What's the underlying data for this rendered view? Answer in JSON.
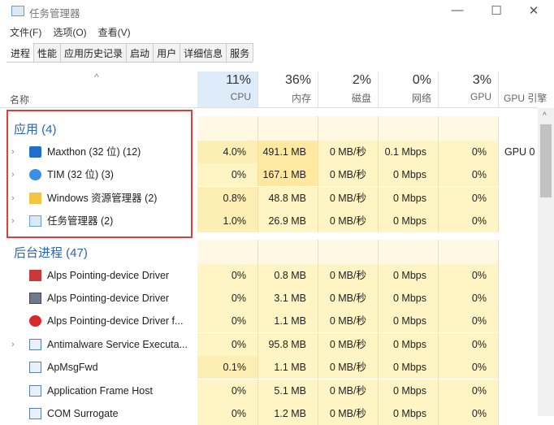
{
  "window": {
    "title": "任务管理器",
    "minimize": "—",
    "maximize": "☐",
    "close": "✕"
  },
  "menu": [
    "文件(F)",
    "选项(O)",
    "查看(V)"
  ],
  "tabs": [
    "进程",
    "性能",
    "应用历史记录",
    "启动",
    "用户",
    "详细信息",
    "服务"
  ],
  "columns": {
    "name": "名称",
    "sort_arrow": "^",
    "cpu": {
      "pct": "11%",
      "label": "CPU"
    },
    "mem": {
      "pct": "36%",
      "label": "内存"
    },
    "disk": {
      "pct": "2%",
      "label": "磁盘"
    },
    "net": {
      "pct": "0%",
      "label": "网络"
    },
    "gpu": {
      "pct": "3%",
      "label": "GPU"
    },
    "gpu_engine": {
      "label": "GPU 引擎"
    }
  },
  "groups": [
    {
      "label": "应用 (4)",
      "rows": [
        {
          "name": "Maxthon (32 位) (12)",
          "icon": "maxthon-icon",
          "expandable": true,
          "cpu": "4.0%",
          "mem": "491.1 MB",
          "disk": "0 MB/秒",
          "net": "0.1 Mbps",
          "gpu": "0%",
          "gpu_engine": "GPU 0"
        },
        {
          "name": "TIM (32 位) (3)",
          "icon": "tim-icon",
          "expandable": true,
          "cpu": "0%",
          "mem": "167.1 MB",
          "disk": "0 MB/秒",
          "net": "0 Mbps",
          "gpu": "0%",
          "gpu_engine": ""
        },
        {
          "name": "Windows 资源管理器 (2)",
          "icon": "folder-icon",
          "expandable": true,
          "cpu": "0.8%",
          "mem": "48.8 MB",
          "disk": "0 MB/秒",
          "net": "0 Mbps",
          "gpu": "0%",
          "gpu_engine": ""
        },
        {
          "name": "任务管理器 (2)",
          "icon": "task-manager-icon",
          "expandable": true,
          "cpu": "1.0%",
          "mem": "26.9 MB",
          "disk": "0 MB/秒",
          "net": "0 Mbps",
          "gpu": "0%",
          "gpu_engine": ""
        }
      ]
    },
    {
      "label": "后台进程 (47)",
      "rows": [
        {
          "name": "Alps Pointing-device Driver",
          "icon": "alps-icon",
          "expandable": false,
          "cpu": "0%",
          "mem": "0.8 MB",
          "disk": "0 MB/秒",
          "net": "0 Mbps",
          "gpu": "0%",
          "gpu_engine": ""
        },
        {
          "name": "Alps Pointing-device Driver",
          "icon": "monitor-icon",
          "expandable": false,
          "cpu": "0%",
          "mem": "3.1 MB",
          "disk": "0 MB/秒",
          "net": "0 Mbps",
          "gpu": "0%",
          "gpu_engine": ""
        },
        {
          "name": "Alps Pointing-device Driver f...",
          "icon": "bug-icon",
          "expandable": false,
          "cpu": "0%",
          "mem": "1.1 MB",
          "disk": "0 MB/秒",
          "net": "0 Mbps",
          "gpu": "0%",
          "gpu_engine": ""
        },
        {
          "name": "Antimalware Service Executa...",
          "icon": "service-icon",
          "expandable": true,
          "cpu": "0%",
          "mem": "95.8 MB",
          "disk": "0 MB/秒",
          "net": "0 Mbps",
          "gpu": "0%",
          "gpu_engine": ""
        },
        {
          "name": "ApMsgFwd",
          "icon": "service-icon",
          "expandable": false,
          "cpu": "0.1%",
          "mem": "1.1 MB",
          "disk": "0 MB/秒",
          "net": "0 Mbps",
          "gpu": "0%",
          "gpu_engine": ""
        },
        {
          "name": "Application Frame Host",
          "icon": "service-icon",
          "expandable": false,
          "cpu": "0%",
          "mem": "5.1 MB",
          "disk": "0 MB/秒",
          "net": "0 Mbps",
          "gpu": "0%",
          "gpu_engine": ""
        },
        {
          "name": "COM Surrogate",
          "icon": "service-icon",
          "expandable": false,
          "cpu": "0%",
          "mem": "1.2 MB",
          "disk": "0 MB/秒",
          "net": "0 Mbps",
          "gpu": "0%",
          "gpu_engine": ""
        }
      ]
    }
  ],
  "colors": {
    "highlight_box": "#e03c3c",
    "group_text": "#2a64b4",
    "cpu_header_bg": "#deecf9",
    "cell_bg": "#fff4c4",
    "cell_bg_strong": "#ffe8a0"
  }
}
